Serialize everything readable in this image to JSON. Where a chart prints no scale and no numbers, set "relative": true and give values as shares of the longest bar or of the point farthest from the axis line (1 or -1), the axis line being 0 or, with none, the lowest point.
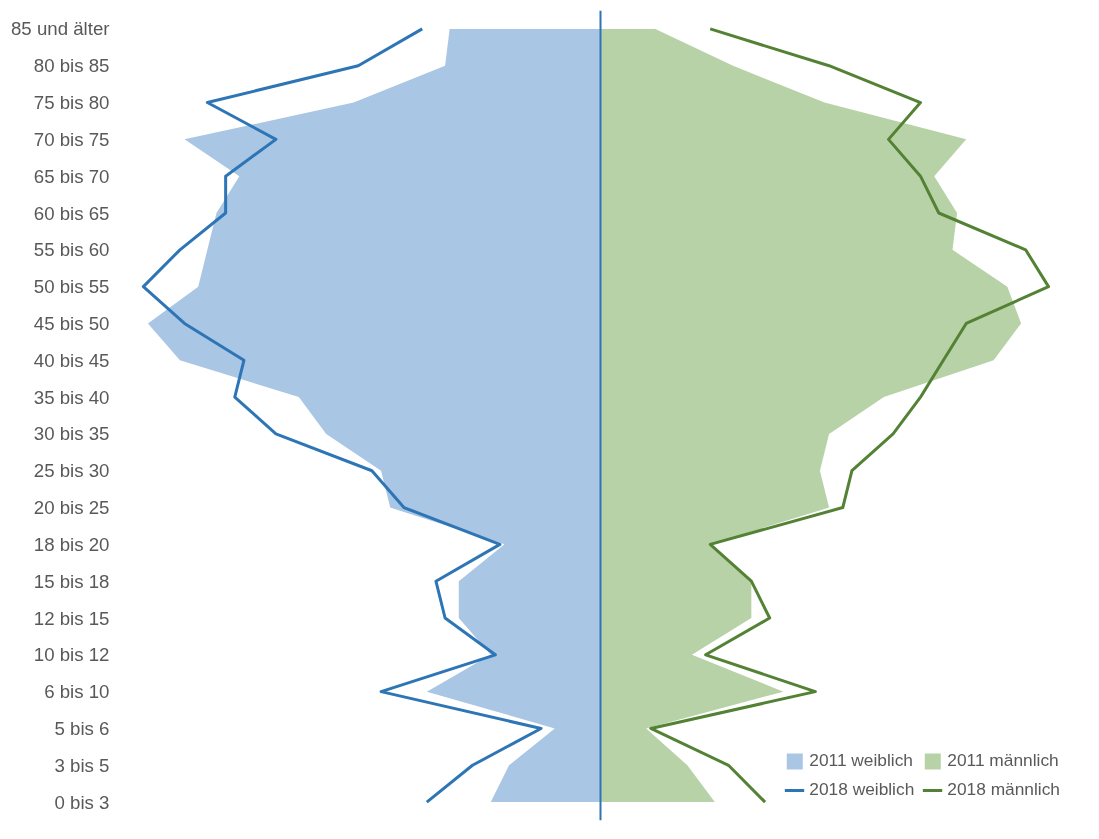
{
  "chart_data": {
    "type": "area",
    "orientation": "horizontal",
    "relative": true,
    "legend": "bottom right",
    "grid": false,
    "ref_lines": [
      {
        "axis": "x",
        "value": 0,
        "color": "#2e75b6"
      }
    ],
    "categories": [
      "85 und älter",
      "80 bis 85",
      "75 bis 80",
      "70 bis 75",
      "65 bis 70",
      "60 bis 65",
      "55 bis 60",
      "50 bis 55",
      "45 bis 50",
      "40 bis 45",
      "35 bis 40",
      "30 bis 35",
      "25 bis 30",
      "20 bis 25",
      "18 bis 20",
      "15 bis 18",
      "12 bis 15",
      "10 bis 12",
      "6 bis 10",
      "5 bis 6",
      "3 bis 5",
      "0 bis 3"
    ],
    "series": [
      {
        "name": "2011 weiblich",
        "color": "#a9c6e4",
        "values": [
          -0.33,
          -0.34,
          -0.54,
          -0.91,
          -0.79,
          -0.84,
          -0.86,
          -0.88,
          -0.99,
          -0.92,
          -0.66,
          -0.6,
          -0.48,
          -0.46,
          -0.21,
          -0.31,
          -0.31,
          -0.24,
          -0.38,
          -0.1,
          -0.2,
          -0.24
        ]
      },
      {
        "name": "2018 weiblich",
        "type": "line",
        "color": "#2e75b6",
        "values": [
          -0.39,
          -0.53,
          -0.86,
          -0.71,
          -0.82,
          -0.82,
          -0.92,
          -1.0,
          -0.91,
          -0.78,
          -0.8,
          -0.71,
          -0.5,
          -0.43,
          -0.22,
          -0.36,
          -0.34,
          -0.23,
          -0.48,
          -0.13,
          -0.28,
          -0.38
        ]
      },
      {
        "name": "2011 männlich",
        "color": "#b8d2a8",
        "values": [
          0.12,
          0.29,
          0.49,
          0.8,
          0.73,
          0.78,
          0.77,
          0.89,
          0.92,
          0.86,
          0.62,
          0.5,
          0.48,
          0.5,
          0.24,
          0.33,
          0.33,
          0.2,
          0.4,
          0.1,
          0.19,
          0.25
        ]
      },
      {
        "name": "2018 männlich",
        "type": "line",
        "color": "#548235",
        "values": [
          0.24,
          0.5,
          0.7,
          0.63,
          0.7,
          0.74,
          0.93,
          0.98,
          0.8,
          0.75,
          0.7,
          0.64,
          0.55,
          0.53,
          0.24,
          0.33,
          0.37,
          0.23,
          0.47,
          0.11,
          0.28,
          0.36
        ]
      }
    ]
  }
}
